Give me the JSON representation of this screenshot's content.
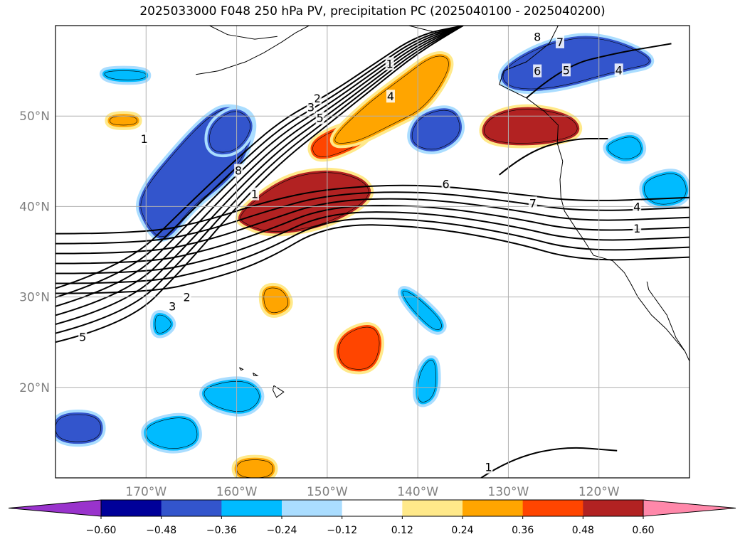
{
  "title": "2025033000 F048 250 hPa PV, precipitation PC (2025040100 - 2025040200)",
  "chart_data": {
    "type": "heatmap",
    "title": "2025033000 F048 250 hPa PV, precipitation PC (2025040100 - 2025040200)",
    "xlim": [
      -180,
      -110
    ],
    "ylim": [
      10,
      60
    ],
    "x_ticks": [
      {
        "value": -170,
        "label": "170°W"
      },
      {
        "value": -160,
        "label": "160°W"
      },
      {
        "value": -150,
        "label": "150°W"
      },
      {
        "value": -140,
        "label": "140°W"
      },
      {
        "value": -130,
        "label": "130°W"
      },
      {
        "value": -120,
        "label": "120°W"
      }
    ],
    "y_ticks": [
      {
        "value": 20,
        "label": "20°N"
      },
      {
        "value": 30,
        "label": "30°N"
      },
      {
        "value": 40,
        "label": "40°N"
      },
      {
        "value": 50,
        "label": "50°N"
      }
    ],
    "grid": true,
    "colorbar": {
      "levels": [
        -0.6,
        -0.48,
        -0.36,
        -0.24,
        -0.12,
        0.12,
        0.24,
        0.36,
        0.48,
        0.6
      ],
      "tick_labels": [
        "−0.60",
        "−0.48",
        "−0.36",
        "−0.24",
        "−0.12",
        "0.12",
        "0.24",
        "0.36",
        "0.48",
        "0.60"
      ],
      "colors": [
        "#9933cc",
        "#000099",
        "#3355cc",
        "#00bbff",
        "#aaddff",
        "#ffffff",
        "#ffe98a",
        "#ffa500",
        "#ff4500",
        "#b22222",
        "#ff88aa"
      ],
      "extend": "both"
    },
    "pv_contour_labels": [
      {
        "text": "1",
        "lon": -170.2,
        "lat": 47.5
      },
      {
        "text": "1",
        "lon": -143.1,
        "lat": 55.8
      },
      {
        "text": "2",
        "lon": -151.1,
        "lat": 52.0
      },
      {
        "text": "3",
        "lon": -151.8,
        "lat": 51.0
      },
      {
        "text": "4",
        "lon": -143.0,
        "lat": 52.2
      },
      {
        "text": "5",
        "lon": -150.8,
        "lat": 49.8
      },
      {
        "text": "8",
        "lon": -159.8,
        "lat": 44.0
      },
      {
        "text": "1",
        "lon": -158.0,
        "lat": 41.4
      },
      {
        "text": "6",
        "lon": -136.9,
        "lat": 42.5
      },
      {
        "text": "7",
        "lon": -127.3,
        "lat": 40.4
      },
      {
        "text": "8",
        "lon": -126.8,
        "lat": 58.8
      },
      {
        "text": "7",
        "lon": -124.3,
        "lat": 58.2
      },
      {
        "text": "6",
        "lon": -126.8,
        "lat": 55.0
      },
      {
        "text": "5",
        "lon": -123.6,
        "lat": 55.1
      },
      {
        "text": "4",
        "lon": -117.8,
        "lat": 55.1
      },
      {
        "text": "4",
        "lon": -115.8,
        "lat": 40.0
      },
      {
        "text": "1",
        "lon": -115.8,
        "lat": 37.6
      },
      {
        "text": "3",
        "lon": -167.1,
        "lat": 29.0
      },
      {
        "text": "2",
        "lon": -165.5,
        "lat": 30.0
      },
      {
        "text": "5",
        "lon": -177.0,
        "lat": 25.6
      },
      {
        "text": "1",
        "lon": -132.2,
        "lat": 11.2
      }
    ],
    "precip_pc_regions": [
      {
        "value": 0.5,
        "points": [
          [
            -160,
            39
          ],
          [
            -155,
            43
          ],
          [
            -150,
            44
          ],
          [
            -146,
            43
          ],
          [
            -145,
            41
          ],
          [
            -150,
            38
          ],
          [
            -156,
            37
          ],
          [
            -159,
            38
          ]
        ]
      },
      {
        "value": 0.4,
        "points": [
          [
            -151,
            45
          ],
          [
            -146,
            47
          ],
          [
            -145,
            49
          ],
          [
            -148,
            49
          ],
          [
            -152,
            47
          ]
        ]
      },
      {
        "value": 0.3,
        "points": [
          [
            -150,
            47
          ],
          [
            -146,
            51
          ],
          [
            -142,
            54
          ],
          [
            -138,
            57
          ],
          [
            -136,
            56
          ],
          [
            -139,
            51
          ],
          [
            -143,
            49
          ],
          [
            -147,
            47
          ]
        ]
      },
      {
        "value": 0.5,
        "points": [
          [
            -132,
            50
          ],
          [
            -128,
            51
          ],
          [
            -123,
            50
          ],
          [
            -122,
            48
          ],
          [
            -126,
            47
          ],
          [
            -131,
            47
          ],
          [
            -133,
            48
          ]
        ]
      },
      {
        "value": 0.4,
        "points": [
          [
            -148,
            26
          ],
          [
            -145,
            27
          ],
          [
            -144,
            25
          ],
          [
            -145,
            22
          ],
          [
            -148,
            22
          ],
          [
            -149,
            24
          ]
        ]
      },
      {
        "value": 0.3,
        "points": [
          [
            -157,
            31
          ],
          [
            -155,
            31
          ],
          [
            -154,
            29
          ],
          [
            -156,
            28
          ],
          [
            -157,
            29
          ]
        ]
      },
      {
        "value": 0.3,
        "points": [
          [
            -160,
            12
          ],
          [
            -156,
            12
          ],
          [
            -156,
            10
          ],
          [
            -160,
            10
          ]
        ]
      },
      {
        "value": 0.25,
        "points": [
          [
            -174,
            50
          ],
          [
            -171,
            50
          ],
          [
            -171,
            49
          ],
          [
            -174,
            49
          ]
        ]
      },
      {
        "value": -0.4,
        "points": [
          [
            -171,
            41
          ],
          [
            -166,
            47
          ],
          [
            -163,
            50
          ],
          [
            -161,
            51
          ],
          [
            -158,
            50
          ],
          [
            -159,
            46
          ],
          [
            -161,
            43
          ],
          [
            -165,
            40
          ],
          [
            -168,
            36
          ],
          [
            -170,
            38
          ]
        ]
      },
      {
        "value": -0.45,
        "points": [
          [
            -163,
            49
          ],
          [
            -160,
            51
          ],
          [
            -158,
            49
          ],
          [
            -160,
            46
          ],
          [
            -163,
            46
          ]
        ]
      },
      {
        "value": -0.4,
        "points": [
          [
            -140,
            50
          ],
          [
            -136,
            51
          ],
          [
            -135,
            48
          ],
          [
            -138,
            46
          ],
          [
            -141,
            47
          ]
        ]
      },
      {
        "value": -0.4,
        "points": [
          [
            -131,
            55
          ],
          [
            -126,
            58
          ],
          [
            -120,
            59
          ],
          [
            -113,
            56
          ],
          [
            -118,
            55
          ],
          [
            -125,
            53
          ],
          [
            -130,
            53
          ]
        ]
      },
      {
        "value": -0.3,
        "points": [
          [
            -119,
            47
          ],
          [
            -116,
            48
          ],
          [
            -115,
            46
          ],
          [
            -117,
            45
          ],
          [
            -119,
            46
          ]
        ]
      },
      {
        "value": -0.3,
        "points": [
          [
            -115,
            43
          ],
          [
            -111,
            44
          ],
          [
            -110,
            41
          ],
          [
            -113,
            40
          ],
          [
            -115,
            41
          ]
        ]
      },
      {
        "value": -0.3,
        "points": [
          [
            -142,
            31
          ],
          [
            -140,
            30
          ],
          [
            -137,
            27
          ],
          [
            -138,
            26
          ],
          [
            -141,
            29
          ]
        ]
      },
      {
        "value": -0.3,
        "points": [
          [
            -139,
            23
          ],
          [
            -138,
            23
          ],
          [
            -138,
            19
          ],
          [
            -140,
            18
          ],
          [
            -140,
            21
          ]
        ]
      },
      {
        "value": -0.35,
        "points": [
          [
            -164,
            20
          ],
          [
            -159,
            21
          ],
          [
            -157,
            19
          ],
          [
            -159,
            17
          ],
          [
            -163,
            18
          ]
        ]
      },
      {
        "value": -0.35,
        "points": [
          [
            -170,
            16
          ],
          [
            -165,
            17
          ],
          [
            -164,
            14
          ],
          [
            -167,
            13
          ],
          [
            -170,
            14
          ]
        ]
      },
      {
        "value": -0.4,
        "points": [
          [
            -180,
            17
          ],
          [
            -175,
            17
          ],
          [
            -175,
            14
          ],
          [
            -180,
            14
          ]
        ]
      },
      {
        "value": -0.3,
        "points": [
          [
            -175,
            55
          ],
          [
            -170,
            55
          ],
          [
            -170,
            54
          ],
          [
            -174,
            54
          ]
        ]
      },
      {
        "value": -0.3,
        "points": [
          [
            -169,
            28
          ],
          [
            -168,
            28
          ],
          [
            -167,
            27
          ],
          [
            -168,
            26
          ],
          [
            -169,
            26
          ]
        ]
      }
    ]
  }
}
